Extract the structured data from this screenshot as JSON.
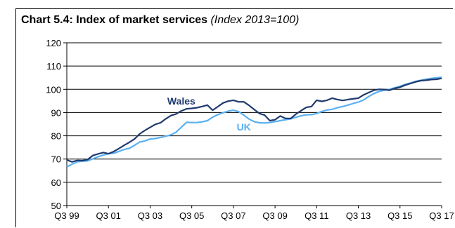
{
  "chart_data": {
    "type": "line",
    "title": "Chart 5.4: Index of market services",
    "subtitle": "(Index 2013=100)",
    "xlabel": "",
    "ylabel": "",
    "ylim": [
      50,
      120
    ],
    "yticks": [
      50,
      60,
      70,
      80,
      90,
      100,
      110,
      120
    ],
    "x_tick_labels": [
      "Q3 99",
      "Q3 01",
      "Q3 03",
      "Q3 05",
      "Q3 07",
      "Q3 09",
      "Q3 11",
      "Q3 13",
      "Q3 15",
      "Q3 17"
    ],
    "x": [
      "Q3 99",
      "Q4 99",
      "Q1 00",
      "Q2 00",
      "Q3 00",
      "Q4 00",
      "Q1 01",
      "Q2 01",
      "Q3 01",
      "Q4 01",
      "Q1 02",
      "Q2 02",
      "Q3 02",
      "Q4 02",
      "Q1 03",
      "Q2 03",
      "Q3 03",
      "Q4 03",
      "Q1 04",
      "Q2 04",
      "Q3 04",
      "Q4 04",
      "Q1 05",
      "Q2 05",
      "Q3 05",
      "Q4 05",
      "Q1 06",
      "Q2 06",
      "Q3 06",
      "Q4 06",
      "Q1 07",
      "Q2 07",
      "Q3 07",
      "Q4 07",
      "Q1 08",
      "Q2 08",
      "Q3 08",
      "Q4 08",
      "Q1 09",
      "Q2 09",
      "Q3 09",
      "Q4 09",
      "Q1 10",
      "Q2 10",
      "Q3 10",
      "Q4 10",
      "Q1 11",
      "Q2 11",
      "Q3 11",
      "Q4 11",
      "Q1 12",
      "Q2 12",
      "Q3 12",
      "Q4 12",
      "Q1 13",
      "Q2 13",
      "Q3 13",
      "Q4 13",
      "Q1 14",
      "Q2 14",
      "Q3 14",
      "Q4 14",
      "Q1 15",
      "Q2 15",
      "Q3 15",
      "Q4 15",
      "Q1 16",
      "Q2 16",
      "Q3 16",
      "Q4 16",
      "Q1 17",
      "Q2 17",
      "Q3 17"
    ],
    "grid": true,
    "series": [
      {
        "name": "Wales",
        "color": "#1f3a6e",
        "values": [
          69.6,
          68.8,
          69.4,
          69.3,
          69.8,
          71.5,
          72.2,
          72.8,
          72.3,
          73.2,
          74.5,
          75.9,
          77.2,
          78.6,
          80.8,
          82.3,
          83.6,
          84.9,
          85.6,
          87.3,
          88.7,
          89.4,
          90.7,
          91.6,
          91.8,
          92.1,
          92.6,
          93.2,
          91.0,
          92.5,
          94.1,
          94.9,
          95.3,
          94.6,
          94.6,
          93.1,
          91.3,
          89.6,
          88.9,
          86.5,
          86.9,
          88.5,
          87.5,
          87.4,
          89.3,
          90.8,
          92.2,
          92.6,
          95.3,
          94.8,
          95.3,
          96.2,
          95.6,
          95.2,
          95.6,
          95.9,
          96.2,
          97.6,
          98.6,
          99.6,
          100.0,
          99.9,
          99.6,
          100.4,
          100.9,
          101.8,
          102.5,
          103.2,
          103.7,
          103.9,
          104.2,
          104.3,
          104.7
        ]
      },
      {
        "name": "UK",
        "color": "#5ab0f2",
        "values": [
          66.6,
          67.8,
          68.8,
          69.1,
          69.2,
          70.1,
          71.0,
          71.7,
          72.3,
          72.5,
          73.3,
          74.1,
          74.6,
          75.9,
          77.3,
          77.8,
          78.6,
          78.8,
          79.3,
          79.8,
          80.4,
          81.6,
          83.7,
          85.8,
          85.7,
          85.7,
          86.0,
          86.5,
          88.0,
          89.1,
          89.9,
          90.6,
          91.0,
          90.4,
          88.9,
          87.2,
          86.1,
          85.6,
          85.5,
          85.7,
          86.1,
          86.5,
          86.9,
          87.3,
          88.0,
          88.6,
          89.0,
          89.1,
          89.6,
          90.5,
          91.1,
          91.4,
          92.1,
          92.6,
          93.2,
          93.9,
          94.5,
          95.4,
          96.9,
          98.2,
          99.1,
          99.6,
          100.0,
          100.7,
          101.3,
          102.1,
          102.7,
          103.4,
          103.9,
          104.3,
          104.7,
          104.9,
          105.2
        ]
      }
    ],
    "series_labels": [
      {
        "text": "Wales",
        "series": "Wales"
      },
      {
        "text": "UK",
        "series": "UK"
      }
    ]
  }
}
